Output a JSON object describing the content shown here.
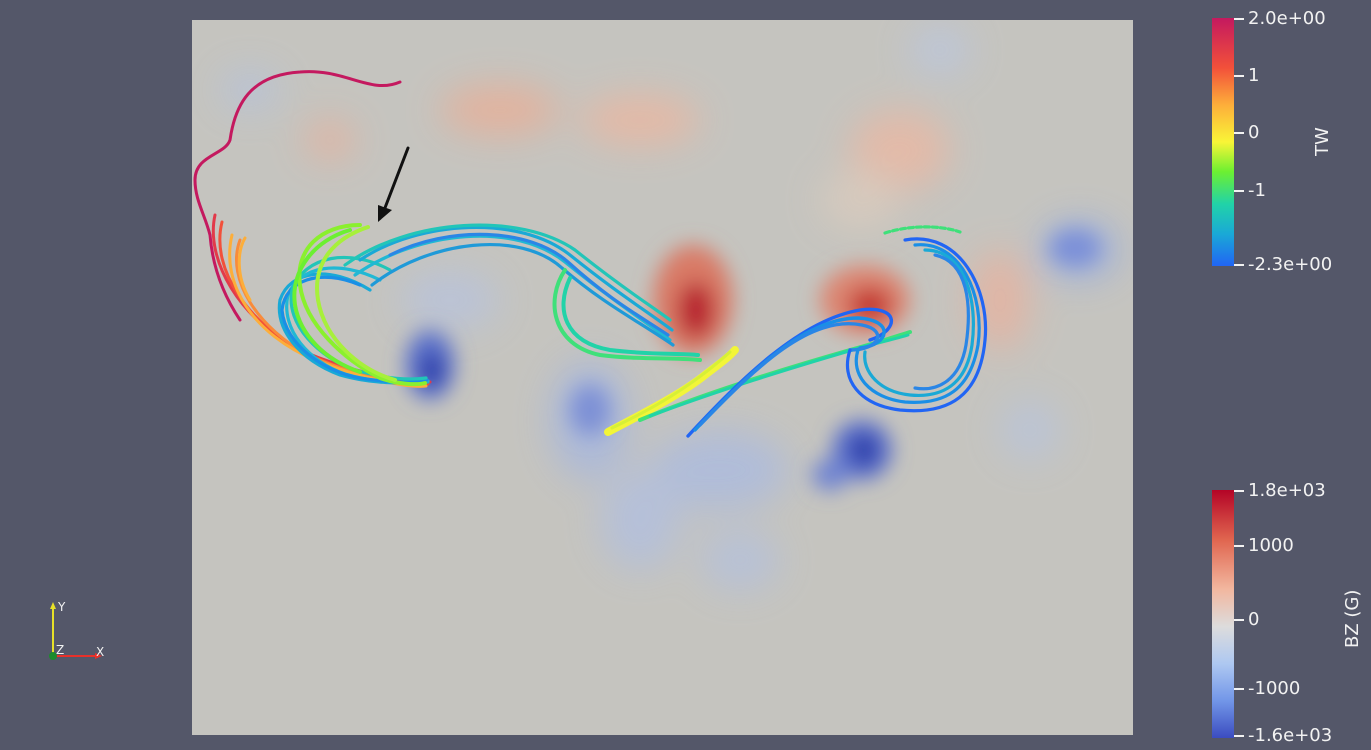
{
  "render_view": {
    "background_color": "#545769",
    "slice_color": "#c5c4bf"
  },
  "colorbars": {
    "tw": {
      "title": "TW",
      "tick_labels": [
        "2.0e+00",
        "1",
        "0",
        "-1",
        "-2.3e+00"
      ],
      "colors": [
        "#c4195f",
        "#f2503a",
        "#fdae3a",
        "#f9f537",
        "#6cf031",
        "#21d3a8",
        "#1aa9d6",
        "#2165f4"
      ]
    },
    "bz": {
      "title": "BZ (G)",
      "tick_labels": [
        "1.8e+03",
        "1000",
        "0",
        "-1000",
        "-1.6e+03"
      ],
      "colors": [
        "#b40426",
        "#e0654f",
        "#f2b79f",
        "#dddcdc",
        "#aec8f1",
        "#7296e8",
        "#3b4cc0"
      ]
    }
  },
  "orientation_axes": {
    "x_label": "X",
    "y_label": "Y",
    "z_label": "Z",
    "x_color": "#e8302a",
    "y_color": "#e7e128",
    "z_color": "#1c8a2c"
  }
}
